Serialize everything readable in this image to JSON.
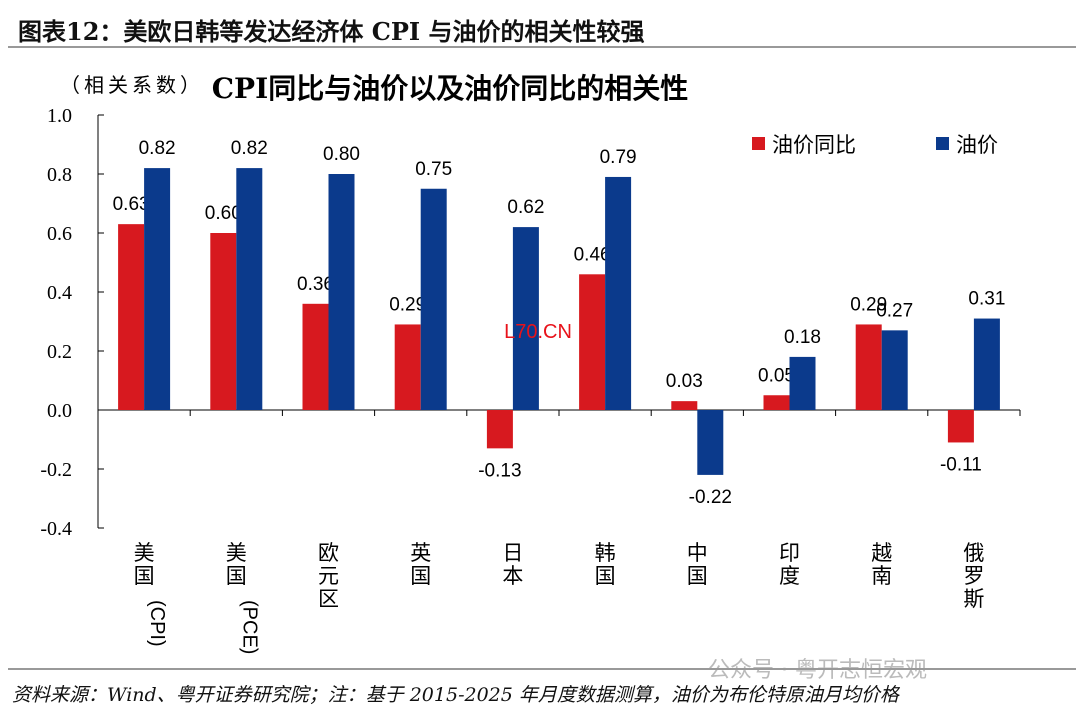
{
  "header": {
    "title": "图表12：美欧日韩等发达经济体 CPI 与油价的相关性较强"
  },
  "footer": {
    "source": "资料来源：Wind、粤开证券研究院；注：基于 2015-2025 年月度数据测算，油价为布伦特原油月均价格",
    "watermark": "公众号 · 粤开志恒宏观",
    "overlay_mark": "L70.CN"
  },
  "chart_data": {
    "type": "bar",
    "title": "CPI同比与油价以及油价同比的相关性",
    "ylabel": "（相关系数）",
    "ylim": [
      -0.4,
      1.0
    ],
    "yticks": [
      "1.0",
      "0.8",
      "0.6",
      "0.4",
      "0.2",
      "0.0",
      "-0.2",
      "-0.4"
    ],
    "categories": [
      "美国(CPI)",
      "美国(PCE)",
      "欧元区",
      "英国",
      "日本",
      "韩国",
      "中国",
      "印度",
      "越南",
      "俄罗斯"
    ],
    "series": [
      {
        "name": "油价同比",
        "color": "#d7191f",
        "values": [
          0.63,
          0.6,
          0.36,
          0.29,
          -0.13,
          0.46,
          0.03,
          0.05,
          0.29,
          -0.11
        ],
        "labels": [
          "0.63",
          "0.60",
          "0.36",
          "0.29",
          "-0.13",
          "0.46",
          "0.03",
          "0.05",
          "0.29",
          "-0.11"
        ]
      },
      {
        "name": "油价",
        "color": "#0b3a8c",
        "values": [
          0.82,
          0.82,
          0.8,
          0.75,
          0.62,
          0.79,
          -0.22,
          0.18,
          0.27,
          0.31
        ],
        "labels": [
          "0.82",
          "0.82",
          "0.80",
          "0.75",
          "0.62",
          "0.79",
          "-0.22",
          "0.18",
          "0.27",
          "0.31"
        ]
      }
    ],
    "legend": "top-right"
  }
}
